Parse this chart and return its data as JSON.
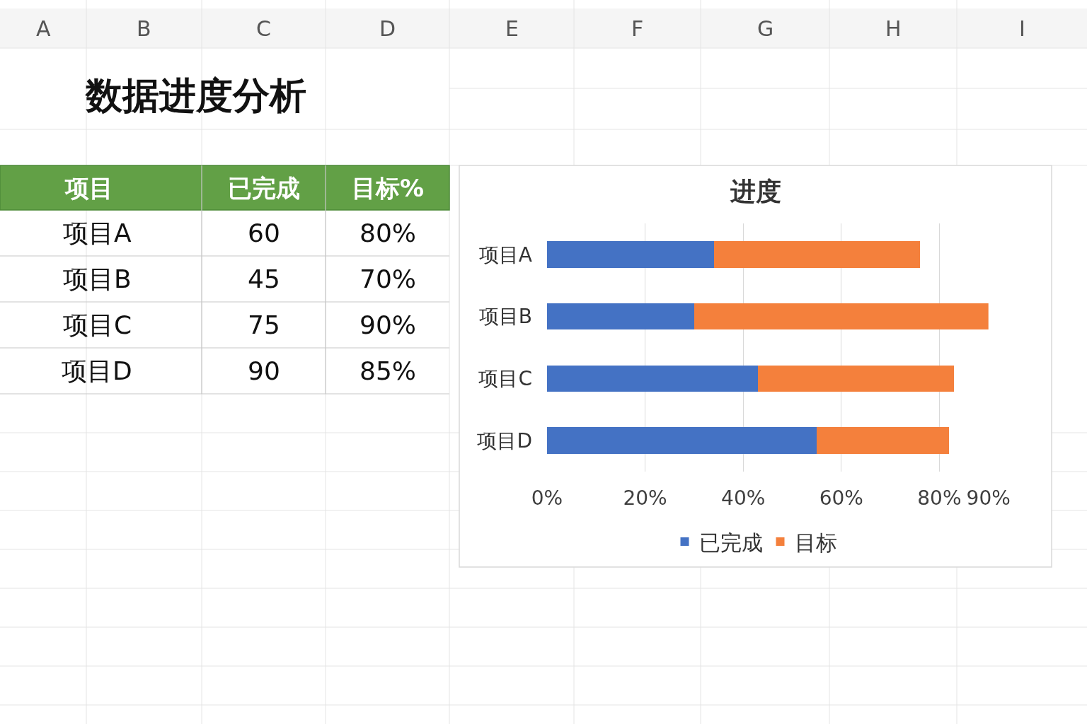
{
  "chart_data": [
    {
      "type": "other",
      "title": "数据进度分析",
      "annotations": [
        "A",
        "B",
        "C",
        "D",
        "E",
        "F",
        "G",
        "H",
        "I"
      ],
      "categories": [
        "项目",
        "已完成",
        "目标%"
      ],
      "y_categories": [
        "项目A",
        "项目B",
        "项目C",
        "项目D"
      ],
      "cell_labels": [
        [
          "60",
          "80%"
        ],
        [
          "45",
          "70%"
        ],
        [
          "75",
          "90%"
        ],
        [
          "90",
          "85%"
        ]
      ]
    },
    {
      "type": "bar",
      "title": "进度",
      "orientation": "horizontal",
      "stacked": true,
      "categories": [
        "项目A",
        "项目B",
        "项目C",
        "项目D"
      ],
      "series": [
        {
          "name": "已完成",
          "color": "#4472c4",
          "values": [
            34,
            30,
            43,
            55
          ]
        },
        {
          "name": "目标",
          "color": "#f4803c",
          "values": [
            42,
            60,
            40,
            27
          ]
        }
      ],
      "xlim": [
        0,
        90
      ],
      "xticks": [
        {
          "value": 0,
          "label": "0%"
        },
        {
          "value": 20,
          "label": "20%"
        },
        {
          "value": 40,
          "label": "40%"
        },
        {
          "value": 60,
          "label": "60%"
        },
        {
          "value": 80,
          "label": "80%"
        },
        {
          "value": 90,
          "label": "90%"
        }
      ],
      "grid": "x",
      "legend": "bottom"
    }
  ]
}
